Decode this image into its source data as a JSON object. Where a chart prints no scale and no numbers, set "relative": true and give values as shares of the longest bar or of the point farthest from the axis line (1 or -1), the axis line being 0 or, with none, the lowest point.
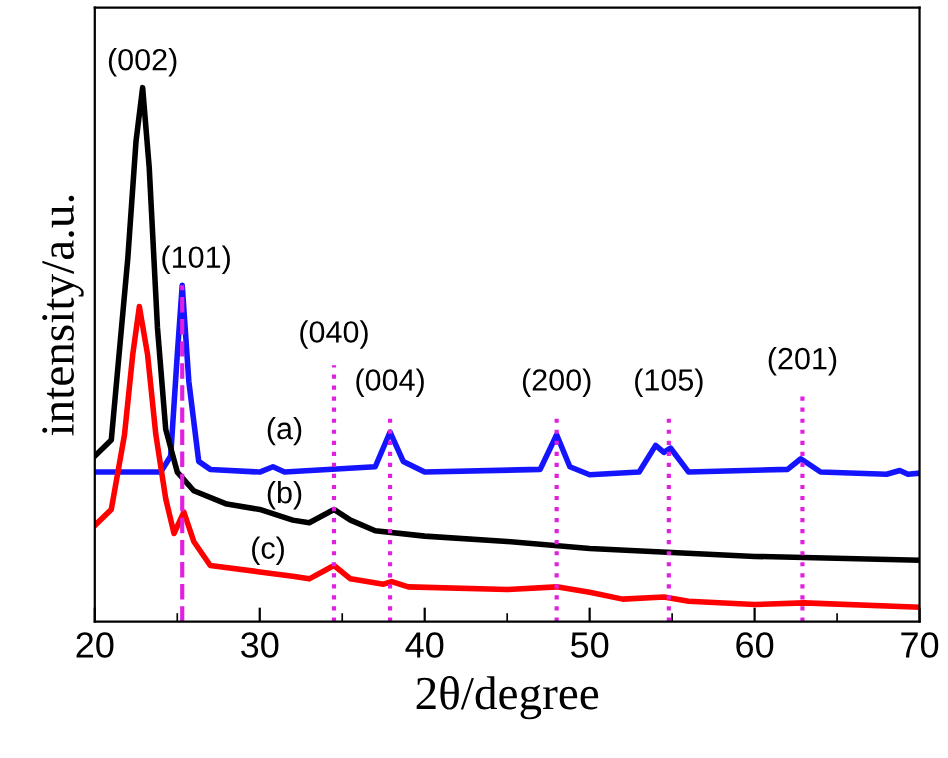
{
  "chart_data": {
    "type": "line",
    "relative": true,
    "xlabel": "2θ/degree",
    "ylabel": "intensity/a.u.",
    "xlim": [
      20,
      70
    ],
    "xticks": [
      20,
      30,
      40,
      50,
      60,
      70
    ],
    "grid": false,
    "legend": false,
    "marker": "none",
    "line_style": "solid",
    "series": [
      {
        "name": "(a)",
        "color": "#1414ff",
        "x": [
          20,
          24,
          24.6,
          25.0,
          25.3,
          25.7,
          26.3,
          27,
          30,
          30.8,
          31.5,
          37,
          37.9,
          38.7,
          40,
          47,
          48.0,
          48.8,
          50,
          53,
          54.0,
          54.5,
          54.9,
          56,
          62,
          62.8,
          64,
          68,
          68.8,
          69.3,
          70
        ],
        "values": [
          0.28,
          0.28,
          0.31,
          0.5,
          0.63,
          0.45,
          0.3,
          0.285,
          0.28,
          0.29,
          0.28,
          0.29,
          0.355,
          0.3,
          0.28,
          0.285,
          0.35,
          0.29,
          0.275,
          0.28,
          0.33,
          0.317,
          0.325,
          0.28,
          0.285,
          0.305,
          0.28,
          0.276,
          0.283,
          0.276,
          0.278
        ]
      },
      {
        "name": "(b)",
        "color": "#000000",
        "x": [
          20,
          21,
          22,
          22.5,
          22.9,
          23.3,
          23.8,
          24.3,
          25,
          26,
          28,
          30,
          32,
          33,
          34.5,
          35.5,
          37,
          40,
          45,
          50,
          60,
          70
        ],
        "values": [
          0.31,
          0.34,
          0.68,
          0.9,
          1.0,
          0.85,
          0.55,
          0.36,
          0.28,
          0.245,
          0.22,
          0.21,
          0.19,
          0.185,
          0.21,
          0.19,
          0.17,
          0.16,
          0.15,
          0.137,
          0.122,
          0.115
        ]
      },
      {
        "name": "(c)",
        "color": "#ff0000",
        "x": [
          20,
          21,
          21.8,
          22.3,
          22.7,
          23.2,
          23.7,
          24.3,
          24.8,
          25.4,
          26,
          27,
          30,
          32,
          33,
          34.5,
          35.5,
          37.5,
          38,
          39,
          45,
          48,
          50,
          52,
          54.5,
          56,
          60,
          63,
          70
        ],
        "values": [
          0.18,
          0.21,
          0.35,
          0.5,
          0.59,
          0.5,
          0.35,
          0.23,
          0.165,
          0.205,
          0.15,
          0.105,
          0.093,
          0.085,
          0.08,
          0.105,
          0.08,
          0.07,
          0.075,
          0.065,
          0.06,
          0.065,
          0.055,
          0.042,
          0.046,
          0.038,
          0.032,
          0.035,
          0.027
        ]
      }
    ],
    "ref_lines": [
      {
        "axis": "x",
        "value": 25.3,
        "color": "#e020e0",
        "line_style": "dashed"
      },
      {
        "axis": "x",
        "value": 34.5,
        "color": "#e020e0",
        "line_style": "dotted"
      },
      {
        "axis": "x",
        "value": 37.9,
        "color": "#e020e0",
        "line_style": "dotted"
      },
      {
        "axis": "x",
        "value": 48.0,
        "color": "#e020e0",
        "line_style": "dotted"
      },
      {
        "axis": "x",
        "value": 54.8,
        "color": "#e020e0",
        "line_style": "dotted"
      },
      {
        "axis": "x",
        "value": 62.9,
        "color": "#e020e0",
        "line_style": "dotted"
      }
    ],
    "annotations": [
      {
        "text": "(002)",
        "x": 22.9,
        "y": 1.0
      },
      {
        "text": "(101)",
        "x": 25.3,
        "y": 0.63
      },
      {
        "text": "(040)",
        "x": 34.5,
        "y": 0.49
      },
      {
        "text": "(004)",
        "x": 37.9,
        "y": 0.4
      },
      {
        "text": "(200)",
        "x": 48.0,
        "y": 0.4
      },
      {
        "text": "(105)",
        "x": 54.8,
        "y": 0.4
      },
      {
        "text": "(201)",
        "x": 62.9,
        "y": 0.44
      }
    ]
  }
}
